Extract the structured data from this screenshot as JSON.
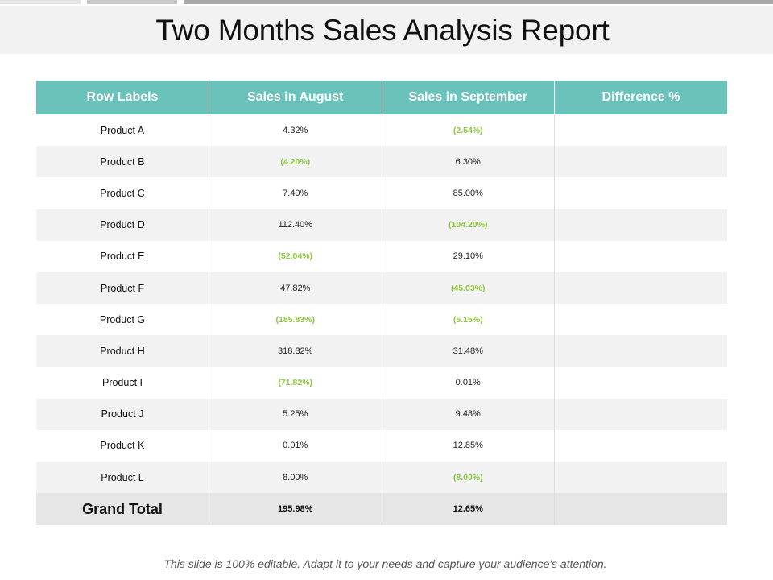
{
  "title": "Two Months Sales Analysis Report",
  "colors": {
    "header": "#6bc2bb",
    "negative": "#8cc63f",
    "band": "#f2f2f2"
  },
  "table": {
    "headers": [
      "Row Labels",
      "Sales in August",
      "Sales in September",
      "Difference %"
    ],
    "rows": [
      {
        "label": "Product A",
        "august": "4.32%",
        "september": "(2.54%)",
        "difference": ""
      },
      {
        "label": "Product B",
        "august": "(4.20%)",
        "september": "6.30%",
        "difference": ""
      },
      {
        "label": "Product C",
        "august": "7.40%",
        "september": "85.00%",
        "difference": ""
      },
      {
        "label": "Product D",
        "august": "112.40%",
        "september": "(104.20%)",
        "difference": ""
      },
      {
        "label": "Product E",
        "august": "(52.04%)",
        "september": "29.10%",
        "difference": ""
      },
      {
        "label": "Product F",
        "august": "47.82%",
        "september": "(45.03%)",
        "difference": ""
      },
      {
        "label": "Product G",
        "august": "(185.83%)",
        "september": "(5.15%)",
        "difference": ""
      },
      {
        "label": "Product H",
        "august": "318.32%",
        "september": "31.48%",
        "difference": ""
      },
      {
        "label": "Product I",
        "august": "(71.82%)",
        "september": "0.01%",
        "difference": ""
      },
      {
        "label": "Product J",
        "august": "5.25%",
        "september": "9.48%",
        "difference": ""
      },
      {
        "label": "Product K",
        "august": "0.01%",
        "september": "12.85%",
        "difference": ""
      },
      {
        "label": "Product L",
        "august": "8.00%",
        "september": "(8.00%)",
        "difference": ""
      }
    ],
    "total": {
      "label": "Grand Total",
      "august": "195.98%",
      "september": "12.65%",
      "difference": ""
    }
  },
  "footer": "This slide is 100% editable. Adapt it to your needs and capture your audience's attention."
}
